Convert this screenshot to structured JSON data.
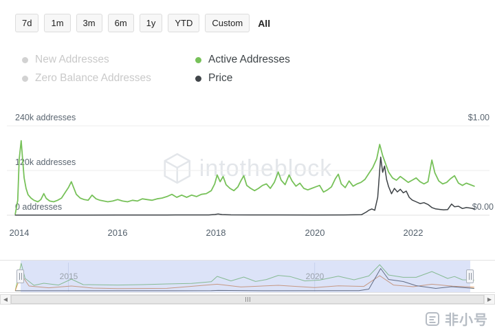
{
  "timeframe_bar": {
    "items": [
      "7d",
      "1m",
      "3m",
      "6m",
      "1y",
      "YTD",
      "Custom",
      "All"
    ],
    "selected": "All"
  },
  "legend": {
    "items": [
      {
        "label": "New Addresses",
        "active": false,
        "color": "#d2d2d2"
      },
      {
        "label": "Zero Balance Addresses",
        "active": false,
        "color": "#d2d2d2"
      },
      {
        "label": "Active Addresses",
        "active": true,
        "color": "#77c159"
      },
      {
        "label": "Price",
        "active": true,
        "color": "#41464a"
      }
    ]
  },
  "axes": {
    "left_labels": [
      "240k addresses",
      "120k addresses",
      "0 addresses"
    ],
    "right_labels": [
      "$1.00",
      "$0.00"
    ],
    "x_ticks": [
      "2014",
      "2016",
      "2018",
      "2020",
      "2022"
    ]
  },
  "navigator": {
    "labels": [
      "2015",
      "2020"
    ]
  },
  "scrollbar": {
    "left_arrow": "◀",
    "right_arrow": "▶"
  },
  "watermark": {
    "text": "intotheblock"
  },
  "brand": {
    "text": "非小号"
  },
  "chart_data": {
    "type": "line",
    "x_range": [
      2013.75,
      2023.55
    ],
    "x_ticks": [
      2014,
      2016,
      2018,
      2020,
      2022
    ],
    "left_axis": {
      "unit": "addresses",
      "tick_values_k": [
        0,
        120,
        240
      ],
      "labels": [
        "0 addresses",
        "120k addresses",
        "240k addresses"
      ]
    },
    "right_axis": {
      "unit": "USD",
      "tick_values": [
        0,
        1.0
      ],
      "labels": [
        "$0.00",
        "$1.00"
      ]
    },
    "series": [
      {
        "name": "Active Addresses",
        "axis": "left",
        "color": "#77c159",
        "line_width": 1.8,
        "value_unit": "thousand_addresses",
        "points": [
          [
            2013.92,
            3
          ],
          [
            2013.97,
            40
          ],
          [
            2014.0,
            150
          ],
          [
            2014.04,
            200
          ],
          [
            2014.07,
            150
          ],
          [
            2014.1,
            100
          ],
          [
            2014.14,
            72
          ],
          [
            2014.18,
            55
          ],
          [
            2014.24,
            46
          ],
          [
            2014.3,
            40
          ],
          [
            2014.38,
            36
          ],
          [
            2014.44,
            42
          ],
          [
            2014.5,
            58
          ],
          [
            2014.55,
            45
          ],
          [
            2014.62,
            38
          ],
          [
            2014.7,
            36
          ],
          [
            2014.78,
            40
          ],
          [
            2014.86,
            46
          ],
          [
            2014.94,
            62
          ],
          [
            2015.0,
            74
          ],
          [
            2015.06,
            90
          ],
          [
            2015.1,
            76
          ],
          [
            2015.16,
            56
          ],
          [
            2015.24,
            46
          ],
          [
            2015.32,
            42
          ],
          [
            2015.4,
            40
          ],
          [
            2015.48,
            54
          ],
          [
            2015.56,
            44
          ],
          [
            2015.64,
            40
          ],
          [
            2015.72,
            38
          ],
          [
            2015.8,
            36
          ],
          [
            2015.9,
            38
          ],
          [
            2016.0,
            42
          ],
          [
            2016.1,
            38
          ],
          [
            2016.2,
            36
          ],
          [
            2016.3,
            40
          ],
          [
            2016.4,
            38
          ],
          [
            2016.5,
            44
          ],
          [
            2016.6,
            42
          ],
          [
            2016.7,
            40
          ],
          [
            2016.8,
            44
          ],
          [
            2016.9,
            46
          ],
          [
            2017.0,
            50
          ],
          [
            2017.1,
            56
          ],
          [
            2017.2,
            48
          ],
          [
            2017.3,
            54
          ],
          [
            2017.4,
            48
          ],
          [
            2017.5,
            54
          ],
          [
            2017.6,
            50
          ],
          [
            2017.7,
            56
          ],
          [
            2017.8,
            58
          ],
          [
            2017.9,
            66
          ],
          [
            2017.97,
            84
          ],
          [
            2018.02,
            108
          ],
          [
            2018.08,
            90
          ],
          [
            2018.14,
            104
          ],
          [
            2018.2,
            82
          ],
          [
            2018.28,
            72
          ],
          [
            2018.36,
            66
          ],
          [
            2018.44,
            76
          ],
          [
            2018.5,
            92
          ],
          [
            2018.56,
            106
          ],
          [
            2018.62,
            80
          ],
          [
            2018.7,
            72
          ],
          [
            2018.78,
            66
          ],
          [
            2018.86,
            72
          ],
          [
            2018.94,
            80
          ],
          [
            2019.02,
            84
          ],
          [
            2019.1,
            72
          ],
          [
            2019.18,
            88
          ],
          [
            2019.26,
            116
          ],
          [
            2019.32,
            94
          ],
          [
            2019.4,
            82
          ],
          [
            2019.48,
            108
          ],
          [
            2019.54,
            92
          ],
          [
            2019.62,
            78
          ],
          [
            2019.7,
            86
          ],
          [
            2019.78,
            72
          ],
          [
            2019.86,
            68
          ],
          [
            2019.94,
            72
          ],
          [
            2020.02,
            76
          ],
          [
            2020.1,
            80
          ],
          [
            2020.18,
            62
          ],
          [
            2020.26,
            68
          ],
          [
            2020.34,
            76
          ],
          [
            2020.42,
            98
          ],
          [
            2020.48,
            110
          ],
          [
            2020.54,
            84
          ],
          [
            2020.62,
            74
          ],
          [
            2020.7,
            92
          ],
          [
            2020.78,
            78
          ],
          [
            2020.86,
            84
          ],
          [
            2020.94,
            88
          ],
          [
            2021.02,
            96
          ],
          [
            2021.1,
            112
          ],
          [
            2021.18,
            128
          ],
          [
            2021.26,
            152
          ],
          [
            2021.32,
            190
          ],
          [
            2021.38,
            160
          ],
          [
            2021.44,
            138
          ],
          [
            2021.5,
            116
          ],
          [
            2021.58,
            100
          ],
          [
            2021.66,
            94
          ],
          [
            2021.74,
            104
          ],
          [
            2021.82,
            96
          ],
          [
            2021.9,
            88
          ],
          [
            2021.98,
            94
          ],
          [
            2022.06,
            100
          ],
          [
            2022.14,
            90
          ],
          [
            2022.22,
            84
          ],
          [
            2022.3,
            90
          ],
          [
            2022.38,
            148
          ],
          [
            2022.44,
            114
          ],
          [
            2022.52,
            92
          ],
          [
            2022.6,
            84
          ],
          [
            2022.68,
            88
          ],
          [
            2022.76,
            98
          ],
          [
            2022.84,
            106
          ],
          [
            2022.92,
            86
          ],
          [
            2023.0,
            80
          ],
          [
            2023.08,
            86
          ],
          [
            2023.16,
            82
          ],
          [
            2023.24,
            78
          ]
        ]
      },
      {
        "name": "Price",
        "axis": "right",
        "color": "#3c4145",
        "line_width": 1.5,
        "value_unit": "USD",
        "points": [
          [
            2013.92,
            0.001
          ],
          [
            2015.0,
            0.001
          ],
          [
            2016.0,
            0.002
          ],
          [
            2017.0,
            0.002
          ],
          [
            2017.85,
            0.003
          ],
          [
            2017.97,
            0.008
          ],
          [
            2018.04,
            0.013
          ],
          [
            2018.12,
            0.007
          ],
          [
            2018.3,
            0.004
          ],
          [
            2018.7,
            0.003
          ],
          [
            2019.3,
            0.003
          ],
          [
            2020.0,
            0.002
          ],
          [
            2020.6,
            0.003
          ],
          [
            2020.95,
            0.005
          ],
          [
            2021.05,
            0.035
          ],
          [
            2021.1,
            0.055
          ],
          [
            2021.16,
            0.07
          ],
          [
            2021.22,
            0.055
          ],
          [
            2021.28,
            0.2
          ],
          [
            2021.34,
            0.65
          ],
          [
            2021.38,
            0.48
          ],
          [
            2021.42,
            0.55
          ],
          [
            2021.46,
            0.4
          ],
          [
            2021.5,
            0.32
          ],
          [
            2021.56,
            0.24
          ],
          [
            2021.62,
            0.3
          ],
          [
            2021.68,
            0.26
          ],
          [
            2021.74,
            0.29
          ],
          [
            2021.8,
            0.25
          ],
          [
            2021.86,
            0.27
          ],
          [
            2021.92,
            0.2
          ],
          [
            2021.98,
            0.17
          ],
          [
            2022.06,
            0.15
          ],
          [
            2022.14,
            0.13
          ],
          [
            2022.22,
            0.14
          ],
          [
            2022.3,
            0.12
          ],
          [
            2022.38,
            0.085
          ],
          [
            2022.46,
            0.07
          ],
          [
            2022.54,
            0.065
          ],
          [
            2022.62,
            0.06
          ],
          [
            2022.7,
            0.062
          ],
          [
            2022.78,
            0.125
          ],
          [
            2022.84,
            0.095
          ],
          [
            2022.92,
            0.1
          ],
          [
            2023.0,
            0.075
          ],
          [
            2023.08,
            0.085
          ],
          [
            2023.16,
            0.08
          ],
          [
            2023.24,
            0.072
          ]
        ]
      }
    ],
    "navigator": {
      "gridline_years": [
        2015,
        2020
      ],
      "series": [
        {
          "name": "Active Addresses (nav)",
          "scale": "addresses",
          "color": "#8cc878",
          "points": [
            [
              2013.92,
              2
            ],
            [
              2014.04,
              200
            ],
            [
              2014.12,
              90
            ],
            [
              2014.3,
              40
            ],
            [
              2014.5,
              55
            ],
            [
              2014.8,
              42
            ],
            [
              2015.06,
              85
            ],
            [
              2015.3,
              45
            ],
            [
              2015.6,
              44
            ],
            [
              2016.0,
              42
            ],
            [
              2016.5,
              45
            ],
            [
              2017.0,
              50
            ],
            [
              2017.5,
              54
            ],
            [
              2017.9,
              66
            ],
            [
              2018.02,
              105
            ],
            [
              2018.3,
              72
            ],
            [
              2018.56,
              100
            ],
            [
              2018.8,
              68
            ],
            [
              2019.02,
              82
            ],
            [
              2019.26,
              112
            ],
            [
              2019.5,
              104
            ],
            [
              2019.8,
              72
            ],
            [
              2020.1,
              78
            ],
            [
              2020.48,
              106
            ],
            [
              2020.8,
              80
            ],
            [
              2021.1,
              108
            ],
            [
              2021.32,
              190
            ],
            [
              2021.5,
              115
            ],
            [
              2021.8,
              98
            ],
            [
              2022.06,
              98
            ],
            [
              2022.38,
              140
            ],
            [
              2022.7,
              90
            ],
            [
              2022.84,
              104
            ],
            [
              2023.0,
              80
            ],
            [
              2023.24,
              78
            ]
          ]
        },
        {
          "name": "New Addresses (nav)",
          "scale": "addresses",
          "color": "#e09a62",
          "points": [
            [
              2013.92,
              1
            ],
            [
              2014.04,
              120
            ],
            [
              2014.2,
              35
            ],
            [
              2014.6,
              22
            ],
            [
              2015.06,
              35
            ],
            [
              2015.5,
              20
            ],
            [
              2016.0,
              16
            ],
            [
              2017.0,
              18
            ],
            [
              2018.02,
              48
            ],
            [
              2018.5,
              28
            ],
            [
              2019.26,
              40
            ],
            [
              2020.0,
              24
            ],
            [
              2020.48,
              36
            ],
            [
              2021.0,
              32
            ],
            [
              2021.32,
              110
            ],
            [
              2021.6,
              42
            ],
            [
              2022.0,
              30
            ],
            [
              2022.38,
              48
            ],
            [
              2022.8,
              34
            ],
            [
              2023.24,
              26
            ]
          ]
        },
        {
          "name": "Price (nav)",
          "scale": "price",
          "color": "#5b6166",
          "points": [
            [
              2013.92,
              0.002
            ],
            [
              2017.9,
              0.004
            ],
            [
              2018.04,
              0.012
            ],
            [
              2019.0,
              0.003
            ],
            [
              2020.9,
              0.004
            ],
            [
              2021.1,
              0.05
            ],
            [
              2021.34,
              0.65
            ],
            [
              2021.5,
              0.33
            ],
            [
              2021.8,
              0.27
            ],
            [
              2022.06,
              0.15
            ],
            [
              2022.46,
              0.07
            ],
            [
              2022.78,
              0.12
            ],
            [
              2023.24,
              0.07
            ]
          ]
        }
      ]
    }
  }
}
